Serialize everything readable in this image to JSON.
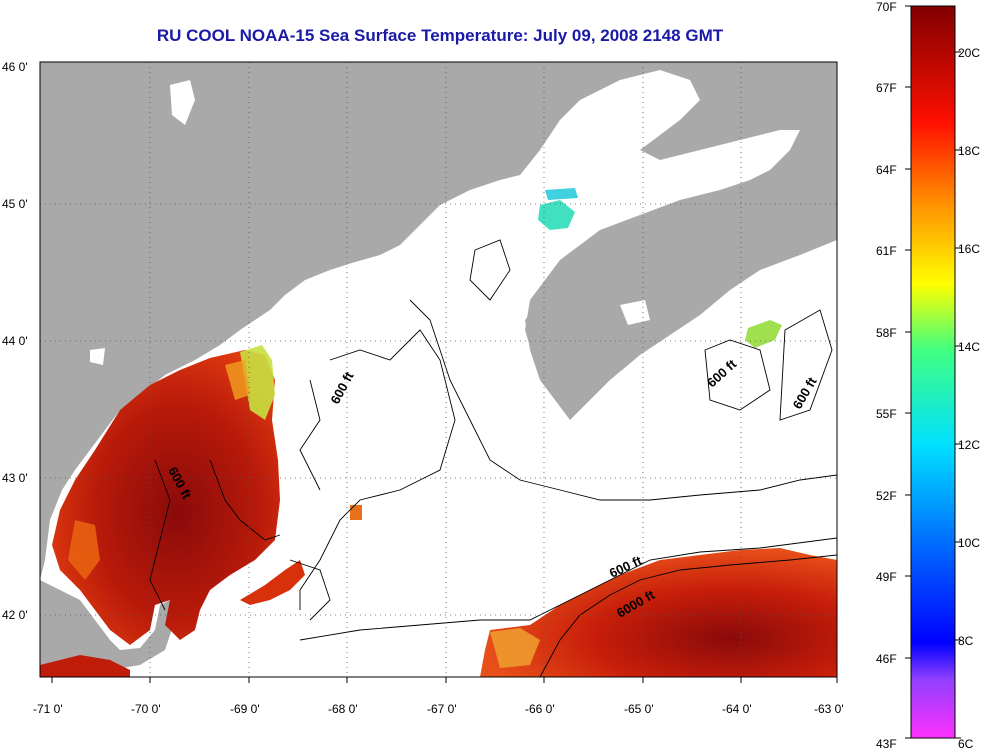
{
  "title": "RU COOL  NOAA-15  Sea Surface Temperature:  July 09, 2008 2148 GMT",
  "map": {
    "lon_range": [
      -71,
      -63
    ],
    "lat_range": [
      41.5,
      46
    ],
    "lon_ticks": [
      -71,
      -70,
      -69,
      -68,
      -67,
      -66,
      -65,
      -64,
      -63
    ],
    "lat_ticks": [
      42,
      43,
      44,
      45,
      46
    ],
    "lon_tick_labels": [
      "-71 0'",
      "-70 0'",
      "-69 0'",
      "-68 0'",
      "-67 0'",
      "-66 0'",
      "-65 0'",
      "-64 0'",
      "-63 0'"
    ],
    "lat_tick_labels": [
      "42 0'",
      "43 0'",
      "44 0'",
      "45 0'",
      "46 0'"
    ],
    "grid": "dotted",
    "land_color": "#a9a9a9",
    "no_data_color": "#ffffff",
    "contour_labels": [
      "600 ft",
      "600 ft",
      "600 ft",
      "600 ft",
      "600 ft",
      "6000 ft"
    ]
  },
  "colorbar": {
    "temp_range_c": [
      6,
      21.1
    ],
    "fahrenheit_labels": [
      "70F",
      "67F",
      "64F",
      "61F",
      "58F",
      "55F",
      "52F",
      "49F",
      "46F",
      "43F"
    ],
    "celsius_labels": [
      "20C",
      "18C",
      "16C",
      "14C",
      "12C",
      "10C",
      "8C",
      "6C"
    ],
    "colors": [
      "#8b0000",
      "#ff0000",
      "#ff8c00",
      "#ffff00",
      "#00ffff",
      "#0080ff",
      "#0000ff",
      "#ff40ff"
    ]
  }
}
